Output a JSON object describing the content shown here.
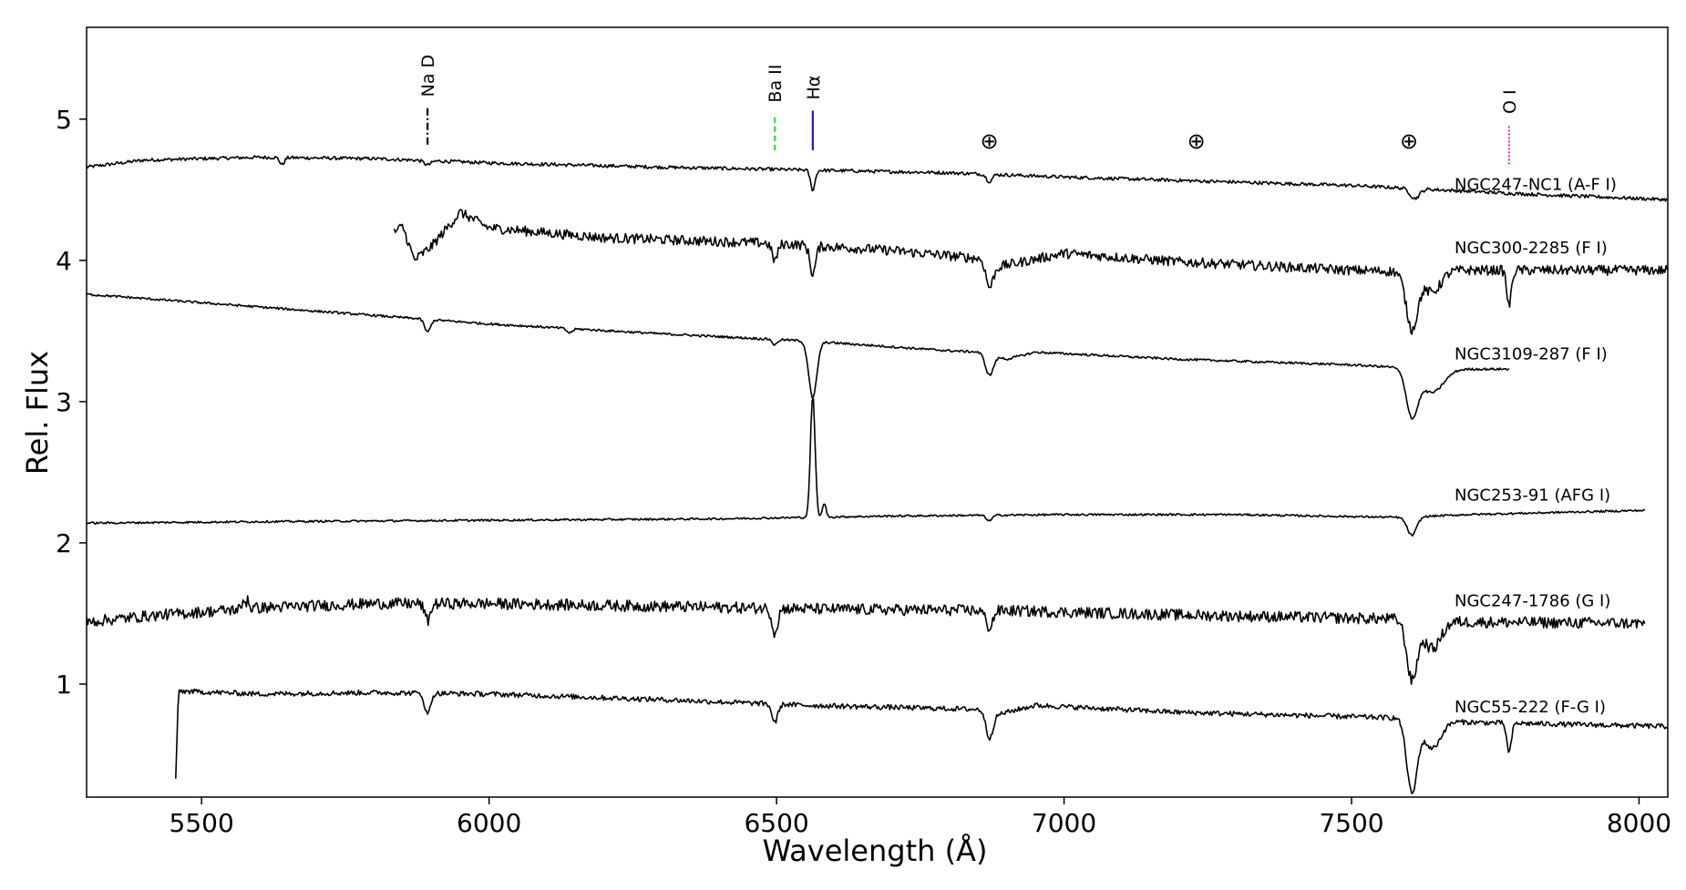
{
  "chart_data": {
    "type": "line",
    "xlabel": "Wavelength (Å)",
    "ylabel": "Rel. Flux",
    "xlim": [
      5300,
      8050
    ],
    "ylim": [
      0.2,
      5.65
    ],
    "xticks": [
      5500,
      6000,
      6500,
      7000,
      7500,
      8000
    ],
    "yticks": [
      1,
      2,
      3,
      4,
      5
    ],
    "grid": false,
    "legend": "labels placed at right end of each spectrum",
    "line_markers": [
      {
        "label": "Na D",
        "wavelength": 5893,
        "color": "#000000",
        "dash": "8,3,2,3",
        "y0": 4.82,
        "y1": 5.08
      },
      {
        "label": "Ba II",
        "wavelength": 6497,
        "color": "#33dd33",
        "dash": "6,4",
        "y0": 4.78,
        "y1": 5.04
      },
      {
        "label": "Hα",
        "wavelength": 6563,
        "color": "#1a1acc",
        "dash": "",
        "y0": 4.78,
        "y1": 5.06
      },
      {
        "label": "O I",
        "wavelength": 7774,
        "color": "#dd33dd",
        "dash": "2,2",
        "y0": 4.68,
        "y1": 4.96
      }
    ],
    "telluric": {
      "symbol": "⊕",
      "wavelengths": [
        6870,
        7230,
        7600
      ],
      "y": 4.85
    },
    "series": [
      {
        "name": "NGC247-NC1 (A-F I)",
        "x_range": [
          5300,
          8050
        ],
        "base": [
          [
            5300,
            4.66
          ],
          [
            5400,
            4.71
          ],
          [
            5600,
            4.73
          ],
          [
            5800,
            4.72
          ],
          [
            6000,
            4.69
          ],
          [
            6300,
            4.66
          ],
          [
            6550,
            4.64
          ],
          [
            6800,
            4.62
          ],
          [
            7000,
            4.59
          ],
          [
            7250,
            4.56
          ],
          [
            7500,
            4.53
          ],
          [
            7600,
            4.51
          ],
          [
            7800,
            4.47
          ],
          [
            8050,
            4.43
          ]
        ],
        "noise": 0.012,
        "lines": [
          [
            5640,
            0.05,
            4
          ],
          [
            5893,
            0.03,
            6
          ],
          [
            6563,
            0.14,
            4
          ],
          [
            6870,
            0.05,
            5
          ],
          [
            7610,
            0.07,
            8
          ]
        ],
        "label_y": 4.5
      },
      {
        "name": "NGC300-2285 (F I)",
        "x_range": [
          5835,
          8050
        ],
        "base": [
          [
            5835,
            4.2
          ],
          [
            5850,
            4.24
          ],
          [
            5870,
            4.0
          ],
          [
            5900,
            4.1
          ],
          [
            5950,
            4.34
          ],
          [
            6000,
            4.23
          ],
          [
            6200,
            4.16
          ],
          [
            6500,
            4.12
          ],
          [
            6700,
            4.07
          ],
          [
            6860,
            4.01
          ],
          [
            6880,
            3.95
          ],
          [
            7000,
            4.05
          ],
          [
            7200,
            3.99
          ],
          [
            7500,
            3.93
          ],
          [
            7590,
            3.92
          ],
          [
            7700,
            3.93
          ],
          [
            8050,
            3.93
          ]
        ],
        "noise": 0.035,
        "lines": [
          [
            6497,
            0.12,
            5
          ],
          [
            6563,
            0.2,
            5
          ],
          [
            6870,
            0.17,
            6
          ],
          [
            7605,
            0.4,
            10
          ],
          [
            7640,
            0.15,
            15
          ],
          [
            7774,
            0.25,
            4
          ]
        ],
        "label_y": 4.05
      },
      {
        "name": "NGC3109-287 (F I)",
        "x_range": [
          5300,
          7775
        ],
        "base": [
          [
            5300,
            3.76
          ],
          [
            5500,
            3.7
          ],
          [
            5800,
            3.61
          ],
          [
            6000,
            3.55
          ],
          [
            6300,
            3.48
          ],
          [
            6550,
            3.43
          ],
          [
            6800,
            3.36
          ],
          [
            6860,
            3.35
          ],
          [
            6900,
            3.3
          ],
          [
            6950,
            3.35
          ],
          [
            7200,
            3.3
          ],
          [
            7500,
            3.26
          ],
          [
            7590,
            3.24
          ],
          [
            7700,
            3.23
          ],
          [
            7775,
            3.23
          ]
        ],
        "noise": 0.008,
        "lines": [
          [
            5893,
            0.09,
            5
          ],
          [
            6140,
            0.03,
            5
          ],
          [
            6497,
            0.04,
            4
          ],
          [
            6563,
            0.4,
            7
          ],
          [
            6870,
            0.15,
            7
          ],
          [
            7605,
            0.32,
            10
          ],
          [
            7640,
            0.17,
            20
          ]
        ],
        "label_y": 3.3
      },
      {
        "name": "NGC253-91 (AFG I)",
        "x_range": [
          5300,
          8010
        ],
        "base": [
          [
            5300,
            2.14
          ],
          [
            5600,
            2.15
          ],
          [
            6000,
            2.16
          ],
          [
            6400,
            2.17
          ],
          [
            6700,
            2.19
          ],
          [
            7000,
            2.2
          ],
          [
            7300,
            2.2
          ],
          [
            7590,
            2.18
          ],
          [
            7700,
            2.2
          ],
          [
            8010,
            2.23
          ]
        ],
        "noise": 0.007,
        "lines": [
          [
            6563,
            -0.86,
            4
          ],
          [
            6583,
            -0.1,
            3
          ],
          [
            6870,
            0.04,
            5
          ],
          [
            7605,
            0.13,
            8
          ]
        ],
        "label_y": 2.3
      },
      {
        "name": "NGC247-1786 (G I)",
        "x_range": [
          5300,
          8010
        ],
        "base": [
          [
            5300,
            1.44
          ],
          [
            5400,
            1.48
          ],
          [
            5600,
            1.54
          ],
          [
            5800,
            1.57
          ],
          [
            6000,
            1.57
          ],
          [
            6300,
            1.55
          ],
          [
            6600,
            1.53
          ],
          [
            6900,
            1.52
          ],
          [
            7200,
            1.49
          ],
          [
            7590,
            1.46
          ],
          [
            7700,
            1.44
          ],
          [
            8010,
            1.43
          ]
        ],
        "noise": 0.04,
        "lines": [
          [
            5577,
            -0.25,
            3
          ],
          [
            5577,
            0.22,
            2
          ],
          [
            5893,
            0.12,
            5
          ],
          [
            6497,
            0.17,
            5
          ],
          [
            6870,
            0.12,
            6
          ],
          [
            7605,
            0.42,
            9
          ],
          [
            7640,
            0.2,
            15
          ]
        ],
        "label_y": 1.55
      },
      {
        "name": "NGC55-222 (F-G I)",
        "x_range": [
          5455,
          8050
        ],
        "base": [
          [
            5455,
            0.34
          ],
          [
            5460,
            0.95
          ],
          [
            5600,
            0.93
          ],
          [
            5800,
            0.94
          ],
          [
            6000,
            0.93
          ],
          [
            6300,
            0.89
          ],
          [
            6550,
            0.85
          ],
          [
            6860,
            0.82
          ],
          [
            6880,
            0.78
          ],
          [
            6950,
            0.85
          ],
          [
            7200,
            0.8
          ],
          [
            7590,
            0.76
          ],
          [
            7700,
            0.73
          ],
          [
            8050,
            0.7
          ]
        ],
        "noise": 0.018,
        "lines": [
          [
            5893,
            0.15,
            5
          ],
          [
            6497,
            0.13,
            5
          ],
          [
            6870,
            0.18,
            6
          ],
          [
            7605,
            0.52,
            9
          ],
          [
            7640,
            0.2,
            15
          ],
          [
            7774,
            0.21,
            4
          ]
        ],
        "label_y": 0.8
      }
    ]
  }
}
